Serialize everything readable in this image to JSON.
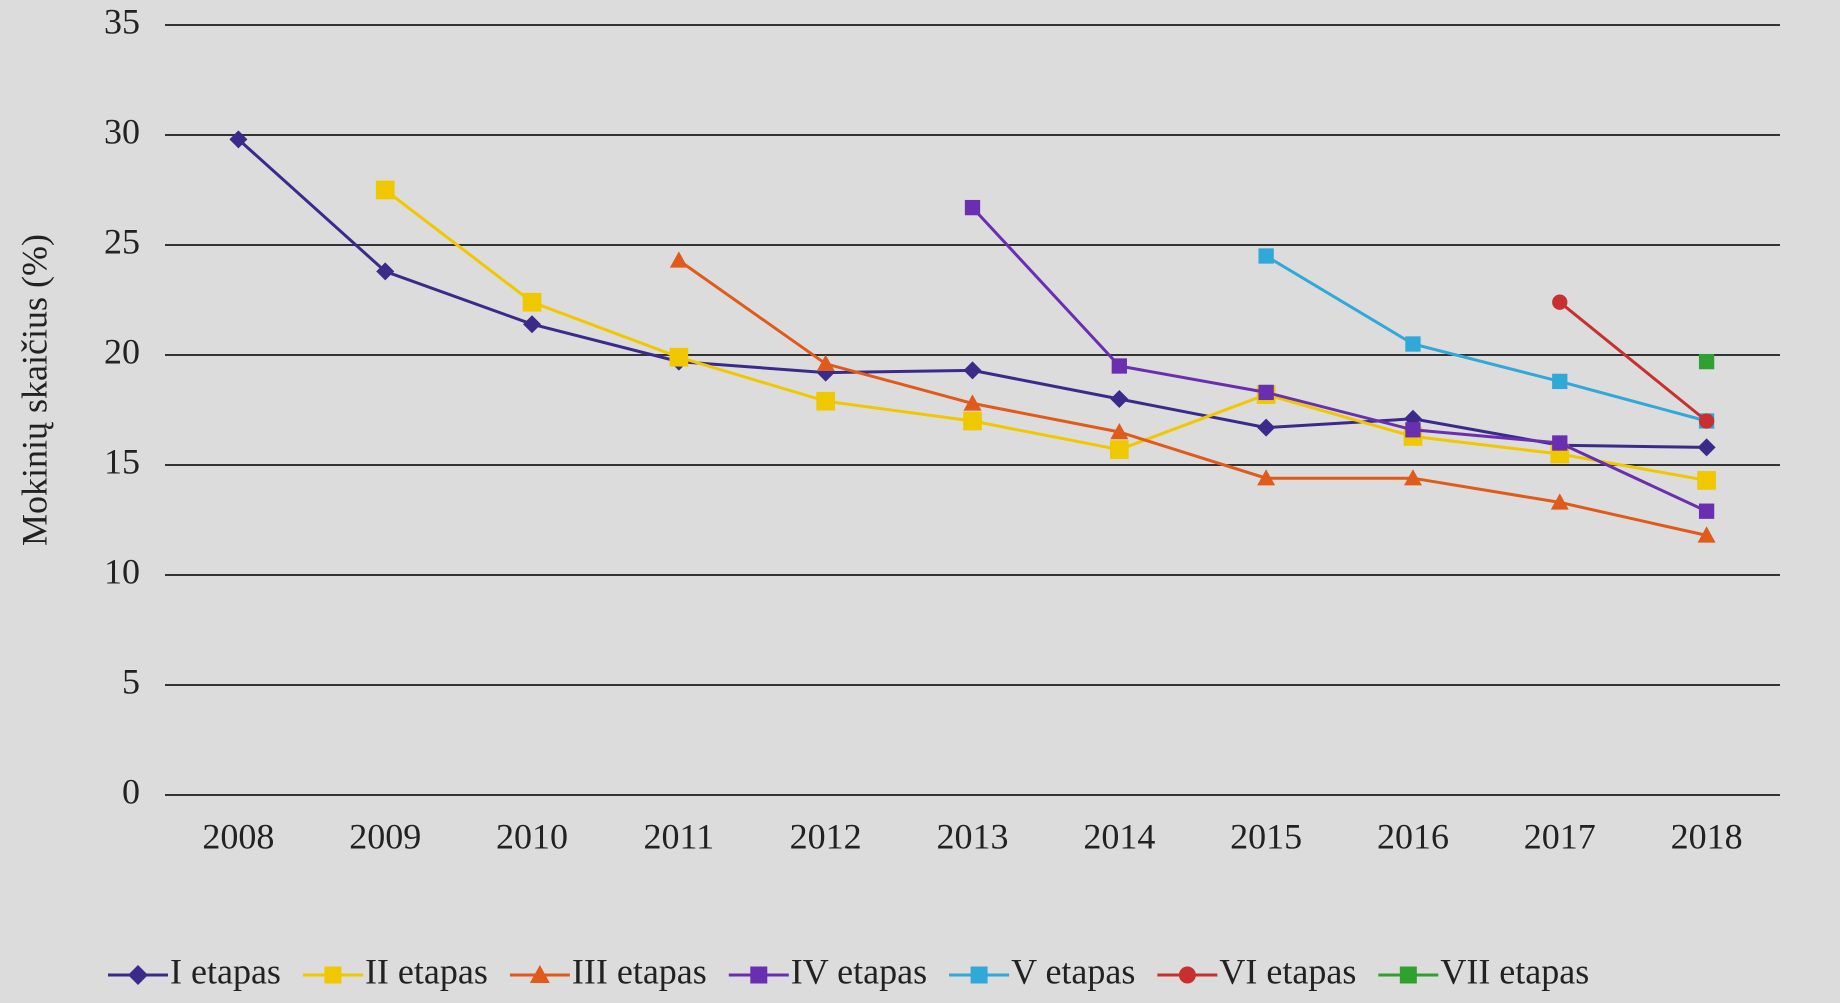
{
  "chart_data": {
    "type": "line",
    "y_label": "Mokinių skaičius (%)",
    "categories": [
      "2008",
      "2009",
      "2010",
      "2011",
      "2012",
      "2013",
      "2014",
      "2015",
      "2016",
      "2017",
      "2018"
    ],
    "ylim": [
      0,
      35
    ],
    "yticks": [
      0,
      5,
      10,
      15,
      20,
      25,
      30,
      35
    ],
    "grid": true,
    "legend": "bottom",
    "series": [
      {
        "name": "I etapas",
        "color": "#3b2a8a",
        "marker": "diamond",
        "values": [
          29.8,
          23.8,
          21.4,
          19.7,
          19.2,
          19.3,
          18.0,
          16.7,
          17.1,
          15.9,
          15.8
        ]
      },
      {
        "name": "II etapas",
        "color": "#f0c800",
        "marker": "square",
        "values": [
          null,
          27.5,
          22.4,
          19.9,
          17.9,
          17.0,
          15.7,
          18.2,
          16.3,
          15.5,
          14.3
        ]
      },
      {
        "name": "III etapas",
        "color": "#e05a1a",
        "marker": "triangle",
        "values": [
          null,
          null,
          null,
          24.3,
          19.6,
          17.8,
          16.5,
          14.4,
          14.4,
          13.3,
          11.8
        ]
      },
      {
        "name": "IV etapas",
        "color": "#6a2fb0",
        "marker": "square",
        "values": [
          null,
          null,
          null,
          null,
          null,
          26.7,
          19.5,
          18.3,
          16.6,
          16.0,
          12.9
        ]
      },
      {
        "name": "V etapas",
        "color": "#30a8d8",
        "marker": "square",
        "values": [
          null,
          null,
          null,
          null,
          null,
          null,
          null,
          24.5,
          20.5,
          18.8,
          17.0
        ]
      },
      {
        "name": "VI etapas",
        "color": "#c83030",
        "marker": "circle",
        "values": [
          null,
          null,
          null,
          null,
          null,
          null,
          null,
          null,
          null,
          22.4,
          17.0
        ]
      },
      {
        "name": "VII etapas",
        "color": "#30a030",
        "marker": "square",
        "values": [
          null,
          null,
          null,
          null,
          null,
          null,
          null,
          null,
          null,
          null,
          19.7
        ]
      }
    ]
  }
}
